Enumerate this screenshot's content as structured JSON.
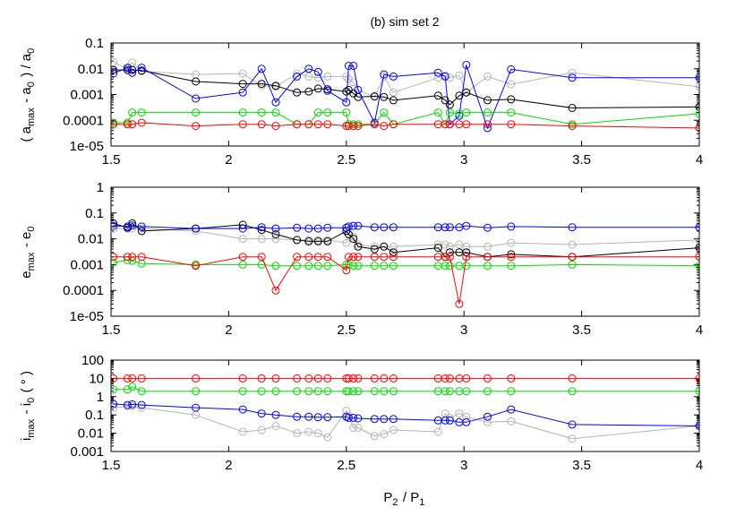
{
  "chart_data": {
    "title": "(b) sim set 2",
    "xlabel": "P_2 / P_1",
    "xlim": [
      1.5,
      4
    ],
    "xticks": [
      1.5,
      2,
      2.5,
      3,
      3.5,
      4
    ],
    "xtick_labels": [
      "1.5",
      "2",
      "2.5",
      "3",
      "3.5",
      "4"
    ],
    "series_colors": {
      "black": "#000000",
      "gray": "#b4b4b4",
      "blue": "#0000ff",
      "green": "#00dd00",
      "red": "#ff0000"
    },
    "panels": [
      {
        "id": "a",
        "type": "line",
        "ylabel": "( a_max - a_0 ) / a_0",
        "yscale": "log",
        "ylim": [
          1e-05,
          0.1
        ],
        "yticks": [
          1e-05,
          0.0001,
          0.001,
          0.01,
          0.1
        ],
        "ytick_labels": [
          "1e-05",
          "0.0001",
          "0.001",
          "0.01",
          "0.1"
        ],
        "series": [
          {
            "color": "gray",
            "x": [
              1.51,
              1.57,
              1.59,
              1.63,
              1.86,
              2.06,
              2.14,
              2.2,
              2.29,
              2.34,
              2.38,
              2.42,
              2.5,
              2.51,
              2.53,
              2.55,
              2.62,
              2.66,
              2.7,
              2.89,
              2.92,
              2.94,
              2.98,
              3.01,
              3.1,
              3.2,
              3.46,
              4.0
            ],
            "y": [
              0.018,
              0.01,
              0.0175,
              0.008,
              0.006,
              0.0065,
              0.0022,
              0.002,
              0.0065,
              0.005,
              0.0045,
              0.005,
              0.005,
              0.004,
              0.003,
              0.0015,
              0.0008,
              0.005,
              0.0012,
              0.0045,
              0.0055,
              0.0045,
              0.0055,
              0.0012,
              0.005,
              0.0025,
              0.007,
              0.002
            ]
          },
          {
            "color": "black",
            "x": [
              1.51,
              1.57,
              1.59,
              1.63,
              1.86,
              2.06,
              2.14,
              2.2,
              2.29,
              2.34,
              2.38,
              2.42,
              2.5,
              2.51,
              2.53,
              2.55,
              2.62,
              2.66,
              2.7,
              2.89,
              2.92,
              2.94,
              2.98,
              3.01,
              3.1,
              3.2,
              3.46,
              4.0
            ],
            "y": [
              0.009,
              0.009,
              0.009,
              0.0085,
              0.0032,
              0.0026,
              0.0026,
              0.0022,
              0.0012,
              0.0013,
              0.0017,
              0.0016,
              0.0013,
              0.0015,
              0.0011,
              0.0008,
              0.00085,
              0.0008,
              0.0006,
              0.0009,
              0.0006,
              0.0004,
              0.0009,
              0.0012,
              0.0006,
              0.00065,
              0.0003,
              0.00033
            ]
          },
          {
            "color": "blue",
            "x": [
              1.51,
              1.57,
              1.59,
              1.63,
              1.86,
              2.06,
              2.14,
              2.2,
              2.29,
              2.34,
              2.38,
              2.42,
              2.5,
              2.51,
              2.53,
              2.55,
              2.62,
              2.66,
              2.7,
              2.89,
              2.92,
              2.94,
              2.98,
              3.01,
              3.1,
              3.2,
              3.46,
              4.0
            ],
            "y": [
              0.0065,
              0.011,
              0.007,
              0.011,
              0.0007,
              0.0012,
              0.01,
              0.0005,
              0.005,
              0.01,
              0.0075,
              0.0014,
              0.0005,
              0.013,
              0.013,
              0.0015,
              8e-05,
              0.006,
              0.005,
              0.007,
              0.005,
              7e-05,
              0.00015,
              0.014,
              5e-05,
              0.0095,
              0.0045,
              0.0045
            ]
          },
          {
            "color": "green",
            "x": [
              1.51,
              1.57,
              1.59,
              1.63,
              1.86,
              2.06,
              2.14,
              2.2,
              2.29,
              2.34,
              2.38,
              2.42,
              2.5,
              2.51,
              2.53,
              2.55,
              2.62,
              2.66,
              2.7,
              2.89,
              2.92,
              2.94,
              2.98,
              3.01,
              3.1,
              3.2,
              3.46,
              4.0
            ],
            "y": [
              8e-05,
              8e-05,
              0.0002,
              0.0002,
              0.0002,
              0.0002,
              0.0002,
              0.0002,
              7e-05,
              7e-05,
              0.0002,
              0.0002,
              0.0002,
              7e-05,
              7e-05,
              7e-05,
              7e-05,
              0.0002,
              7e-05,
              0.0002,
              7e-05,
              0.0002,
              0.00018,
              0.0002,
              0.0002,
              0.0002,
              7e-05,
              0.00018
            ]
          },
          {
            "color": "red",
            "x": [
              1.51,
              1.57,
              1.59,
              1.63,
              1.86,
              2.06,
              2.14,
              2.2,
              2.29,
              2.34,
              2.38,
              2.42,
              2.5,
              2.51,
              2.53,
              2.55,
              2.62,
              2.66,
              2.7,
              2.89,
              2.92,
              2.94,
              2.98,
              3.01,
              3.1,
              3.2,
              3.46,
              4.0
            ],
            "y": [
              7e-05,
              7e-05,
              7e-05,
              8e-05,
              6e-05,
              7e-05,
              7e-05,
              6e-05,
              7e-05,
              7e-05,
              7e-05,
              7e-05,
              6e-05,
              6e-05,
              6e-05,
              6e-05,
              7e-05,
              6e-05,
              7e-05,
              7e-05,
              7e-05,
              7e-05,
              7e-05,
              7e-05,
              7e-05,
              7e-05,
              6e-05,
              5e-05
            ]
          }
        ]
      },
      {
        "id": "e",
        "type": "line",
        "ylabel": "e_max - e_0",
        "yscale": "log",
        "ylim": [
          1e-05,
          1
        ],
        "yticks": [
          1e-05,
          0.0001,
          0.001,
          0.01,
          0.1,
          1
        ],
        "ytick_labels": [
          "1e-05",
          "0.0001",
          "0.001",
          "0.01",
          "0.1",
          "1"
        ],
        "series": [
          {
            "color": "gray",
            "x": [
              1.51,
              1.57,
              1.59,
              1.63,
              1.86,
              2.06,
              2.14,
              2.2,
              2.29,
              2.34,
              2.38,
              2.42,
              2.5,
              2.51,
              2.53,
              2.55,
              2.62,
              2.66,
              2.7,
              2.89,
              2.92,
              2.94,
              2.98,
              3.01,
              3.1,
              3.2,
              3.46,
              4.0
            ],
            "y": [
              0.025,
              0.025,
              0.025,
              0.025,
              0.02,
              0.01,
              0.01,
              0.01,
              0.009,
              0.009,
              0.009,
              0.009,
              0.007,
              0.015,
              0.012,
              0.006,
              0.005,
              0.005,
              0.005,
              0.006,
              0.006,
              0.005,
              0.006,
              0.005,
              0.005,
              0.007,
              0.006,
              0.009
            ]
          },
          {
            "color": "black",
            "x": [
              1.51,
              1.57,
              1.59,
              1.63,
              1.86,
              2.06,
              2.14,
              2.2,
              2.29,
              2.34,
              2.38,
              2.42,
              2.5,
              2.51,
              2.53,
              2.55,
              2.62,
              2.66,
              2.7,
              2.89,
              2.92,
              2.94,
              2.98,
              3.01,
              3.1,
              3.2,
              3.46,
              4.0
            ],
            "y": [
              0.04,
              0.027,
              0.04,
              0.02,
              0.025,
              0.035,
              0.022,
              0.015,
              0.009,
              0.008,
              0.008,
              0.008,
              0.02,
              0.015,
              0.01,
              0.005,
              0.004,
              0.005,
              0.003,
              0.0045,
              0.002,
              0.003,
              0.003,
              0.003,
              0.002,
              0.0025,
              0.002,
              0.0045
            ]
          },
          {
            "color": "blue",
            "x": [
              1.51,
              1.57,
              1.59,
              1.63,
              1.86,
              2.06,
              2.14,
              2.2,
              2.29,
              2.34,
              2.38,
              2.42,
              2.5,
              2.51,
              2.53,
              2.55,
              2.62,
              2.66,
              2.7,
              2.89,
              2.92,
              2.94,
              2.98,
              3.01,
              3.1,
              3.2,
              3.46,
              4.0
            ],
            "y": [
              0.032,
              0.03,
              0.033,
              0.03,
              0.025,
              0.025,
              0.028,
              0.025,
              0.027,
              0.025,
              0.025,
              0.027,
              0.027,
              0.03,
              0.032,
              0.032,
              0.028,
              0.028,
              0.028,
              0.028,
              0.028,
              0.028,
              0.028,
              0.032,
              0.027,
              0.03,
              0.028,
              0.028
            ]
          },
          {
            "color": "green",
            "x": [
              1.51,
              1.57,
              1.59,
              1.63,
              1.86,
              2.06,
              2.14,
              2.2,
              2.29,
              2.34,
              2.38,
              2.42,
              2.5,
              2.51,
              2.53,
              2.55,
              2.62,
              2.66,
              2.7,
              2.89,
              2.92,
              2.94,
              2.98,
              3.01,
              3.1,
              3.2,
              3.46,
              4.0
            ],
            "y": [
              0.0012,
              0.0015,
              0.0014,
              0.0011,
              0.001,
              0.001,
              0.001,
              0.0009,
              0.0009,
              0.0009,
              0.0009,
              0.0009,
              0.001,
              0.001,
              0.0009,
              0.0009,
              0.0009,
              0.0009,
              0.0009,
              0.0009,
              0.0009,
              0.0009,
              0.0009,
              0.0009,
              0.0009,
              0.0009,
              0.001,
              0.0009
            ]
          },
          {
            "color": "red",
            "x": [
              1.51,
              1.57,
              1.59,
              1.63,
              1.86,
              2.06,
              2.14,
              2.2,
              2.29,
              2.34,
              2.38,
              2.42,
              2.5,
              2.51,
              2.53,
              2.55,
              2.62,
              2.66,
              2.7,
              2.89,
              2.92,
              2.94,
              2.98,
              3.01,
              3.1,
              3.2,
              3.46,
              4.0
            ],
            "y": [
              0.002,
              0.002,
              0.002,
              0.002,
              0.0009,
              0.002,
              0.002,
              0.0001,
              0.002,
              0.002,
              0.002,
              0.002,
              0.0006,
              0.002,
              0.002,
              0.002,
              0.002,
              0.002,
              0.002,
              0.002,
              0.002,
              0.002,
              3e-05,
              0.002,
              0.002,
              0.002,
              0.002,
              0.002
            ]
          }
        ]
      },
      {
        "id": "i",
        "type": "line",
        "ylabel": "i_max - i_0 ( ° )",
        "yscale": "log",
        "ylim": [
          0.001,
          100
        ],
        "yticks": [
          0.001,
          0.01,
          0.1,
          1,
          10,
          100
        ],
        "ytick_labels": [
          "0.001",
          "0.01",
          "0.1",
          "1",
          "10",
          "100"
        ],
        "series": [
          {
            "color": "gray",
            "x": [
              1.51,
              1.57,
              1.59,
              1.63,
              1.86,
              2.06,
              2.14,
              2.2,
              2.29,
              2.34,
              2.38,
              2.42,
              2.5,
              2.51,
              2.53,
              2.55,
              2.62,
              2.66,
              2.7,
              2.89,
              2.92,
              2.94,
              2.98,
              3.01,
              3.1,
              3.2,
              3.46,
              4.0
            ],
            "y": [
              0.25,
              0.3,
              0.3,
              0.25,
              0.1,
              0.012,
              0.015,
              0.025,
              0.01,
              0.012,
              0.01,
              0.006,
              0.17,
              0.09,
              0.02,
              0.02,
              0.007,
              0.009,
              0.015,
              0.012,
              0.12,
              0.07,
              0.12,
              0.08,
              0.04,
              0.045,
              0.005,
              0.025
            ]
          },
          {
            "color": "blue",
            "x": [
              1.51,
              1.57,
              1.59,
              1.63,
              1.86,
              2.06,
              2.14,
              2.2,
              2.29,
              2.34,
              2.38,
              2.42,
              2.5,
              2.51,
              2.53,
              2.55,
              2.62,
              2.66,
              2.7,
              2.89,
              2.92,
              2.94,
              2.98,
              3.01,
              3.1,
              3.2,
              3.46,
              4.0
            ],
            "y": [
              0.4,
              0.35,
              0.38,
              0.35,
              0.25,
              0.2,
              0.12,
              0.1,
              0.08,
              0.08,
              0.075,
              0.075,
              0.08,
              0.07,
              0.07,
              0.065,
              0.06,
              0.06,
              0.06,
              0.05,
              0.05,
              0.05,
              0.04,
              0.04,
              0.08,
              0.2,
              0.03,
              0.025
            ]
          },
          {
            "color": "green",
            "x": [
              1.51,
              1.57,
              1.59,
              1.63,
              1.86,
              2.06,
              2.14,
              2.2,
              2.29,
              2.34,
              2.38,
              2.42,
              2.5,
              2.51,
              2.53,
              2.55,
              2.62,
              2.66,
              2.7,
              2.89,
              2.92,
              2.94,
              2.98,
              3.01,
              3.1,
              3.2,
              3.46,
              4.0
            ],
            "y": [
              2.5,
              2.5,
              3.5,
              2,
              2,
              2,
              2,
              2,
              2,
              2,
              2,
              2,
              2,
              2,
              2,
              2,
              2,
              2,
              2,
              2,
              2,
              2,
              2,
              2,
              2,
              2,
              2,
              2
            ]
          },
          {
            "color": "red",
            "x": [
              1.51,
              1.57,
              1.59,
              1.63,
              1.86,
              2.06,
              2.14,
              2.2,
              2.29,
              2.34,
              2.38,
              2.42,
              2.5,
              2.51,
              2.53,
              2.55,
              2.62,
              2.66,
              2.7,
              2.89,
              2.92,
              2.94,
              2.98,
              3.01,
              3.1,
              3.2,
              3.46,
              4.0
            ],
            "y": [
              10,
              10,
              10,
              10,
              10,
              10,
              10,
              10,
              10,
              10,
              10,
              10,
              10,
              10,
              10,
              10,
              10,
              10,
              10,
              10,
              10,
              10,
              10,
              10,
              10,
              10,
              10,
              10
            ]
          }
        ]
      }
    ]
  }
}
